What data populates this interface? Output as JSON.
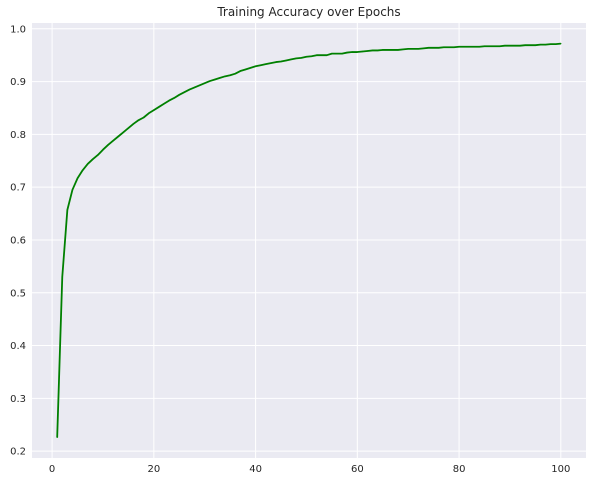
{
  "chart_data": {
    "type": "line",
    "title": "Training Accuracy over Epochs",
    "xlabel": "",
    "ylabel": "",
    "xlim": [
      -3.95,
      104.95
    ],
    "ylim": [
      0.187,
      1.011
    ],
    "x_ticks": [
      0,
      20,
      40,
      60,
      80,
      100
    ],
    "y_ticks": [
      0.2,
      0.3,
      0.4,
      0.5,
      0.6,
      0.7,
      0.8,
      0.9,
      1.0
    ],
    "x_tick_labels": [
      "0",
      "20",
      "40",
      "60",
      "80",
      "100"
    ],
    "y_tick_labels": [
      "0.2",
      "0.3",
      "0.4",
      "0.5",
      "0.6",
      "0.7",
      "0.8",
      "0.9",
      "1.0"
    ],
    "grid": true,
    "background": "#eaeaf2",
    "grid_color": "#ffffff",
    "series": [
      {
        "color": "#008000",
        "x": [
          1,
          2,
          3,
          4,
          5,
          6,
          7,
          8,
          9,
          10,
          11,
          12,
          13,
          14,
          15,
          16,
          17,
          18,
          19,
          20,
          21,
          22,
          23,
          24,
          25,
          26,
          27,
          28,
          29,
          30,
          31,
          32,
          33,
          34,
          35,
          36,
          37,
          38,
          39,
          40,
          41,
          42,
          43,
          44,
          45,
          46,
          47,
          48,
          49,
          50,
          51,
          52,
          53,
          54,
          55,
          56,
          57,
          58,
          59,
          60,
          61,
          62,
          63,
          64,
          65,
          66,
          67,
          68,
          69,
          70,
          71,
          72,
          73,
          74,
          75,
          76,
          77,
          78,
          79,
          80,
          81,
          82,
          83,
          84,
          85,
          86,
          87,
          88,
          89,
          90,
          91,
          92,
          93,
          94,
          95,
          96,
          97,
          98,
          99,
          100
        ],
        "y": [
          0.226,
          0.53,
          0.657,
          0.695,
          0.717,
          0.732,
          0.744,
          0.753,
          0.761,
          0.771,
          0.78,
          0.788,
          0.796,
          0.804,
          0.812,
          0.82,
          0.827,
          0.832,
          0.84,
          0.846,
          0.852,
          0.858,
          0.864,
          0.869,
          0.875,
          0.88,
          0.885,
          0.889,
          0.893,
          0.897,
          0.901,
          0.904,
          0.907,
          0.91,
          0.912,
          0.915,
          0.92,
          0.923,
          0.926,
          0.929,
          0.931,
          0.933,
          0.935,
          0.937,
          0.938,
          0.94,
          0.942,
          0.944,
          0.945,
          0.947,
          0.948,
          0.95,
          0.95,
          0.95,
          0.953,
          0.953,
          0.953,
          0.955,
          0.956,
          0.956,
          0.957,
          0.958,
          0.959,
          0.959,
          0.96,
          0.96,
          0.96,
          0.96,
          0.961,
          0.962,
          0.962,
          0.962,
          0.963,
          0.964,
          0.964,
          0.964,
          0.965,
          0.965,
          0.965,
          0.966,
          0.966,
          0.966,
          0.966,
          0.966,
          0.967,
          0.967,
          0.967,
          0.967,
          0.968,
          0.968,
          0.968,
          0.968,
          0.969,
          0.969,
          0.969,
          0.97,
          0.97,
          0.971,
          0.971,
          0.972
        ]
      }
    ]
  }
}
